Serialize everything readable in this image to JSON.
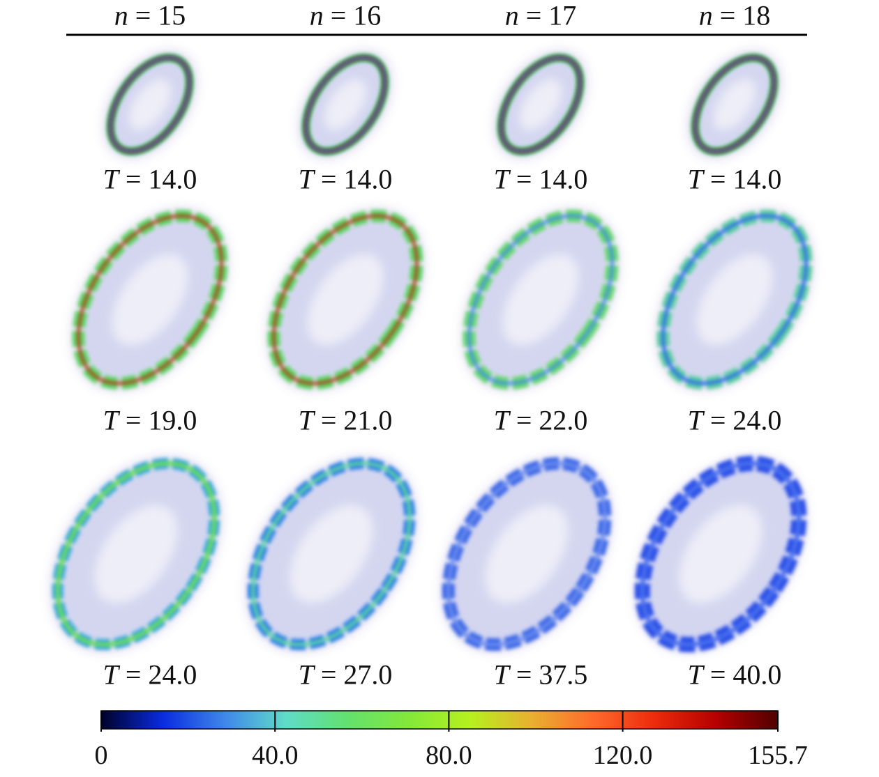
{
  "header": {
    "columns": [
      "n = 15",
      "n = 16",
      "n = 17",
      "n = 18"
    ]
  },
  "panels": [
    [
      "T = 14.0",
      "T = 14.0",
      "T = 14.0",
      "T = 14.0"
    ],
    [
      "T = 19.0",
      "T = 21.0",
      "T = 22.0",
      "T = 24.0"
    ],
    [
      "T = 24.0",
      "T = 27.0",
      "T = 37.5",
      "T = 40.0"
    ]
  ],
  "colorbar": {
    "range": [
      0,
      155.7
    ],
    "ticks": [
      0,
      {
        "value": 40,
        "label": "40.0"
      },
      {
        "value": 80,
        "label": "80.0"
      },
      {
        "value": 120,
        "label": "120.0"
      },
      155.7
    ],
    "colors": [
      "#000028",
      "#0a2be0",
      "#3f86ea",
      "#5fdcc8",
      "#63e070",
      "#84e83a",
      "#b6f01e",
      "#e8b030",
      "#ff6a2c",
      "#ec2a0c",
      "#b40000",
      "#500000"
    ]
  }
}
